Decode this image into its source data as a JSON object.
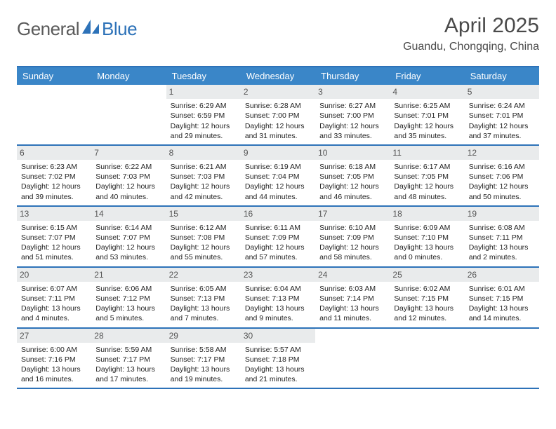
{
  "logo": {
    "text1": "General",
    "text2": "Blue"
  },
  "title": "April 2025",
  "location": "Guandu, Chongqing, China",
  "colors": {
    "accent": "#2d72b8",
    "header_bg": "#3a86c8",
    "daynum_bg": "#e9ebec",
    "text": "#222222",
    "muted": "#555555",
    "logo_gray": "#5a5a5a"
  },
  "weekdays": [
    "Sunday",
    "Monday",
    "Tuesday",
    "Wednesday",
    "Thursday",
    "Friday",
    "Saturday"
  ],
  "weeks": [
    [
      null,
      null,
      {
        "day": "1",
        "sunrise": "Sunrise: 6:29 AM",
        "sunset": "Sunset: 6:59 PM",
        "daylight1": "Daylight: 12 hours",
        "daylight2": "and 29 minutes."
      },
      {
        "day": "2",
        "sunrise": "Sunrise: 6:28 AM",
        "sunset": "Sunset: 7:00 PM",
        "daylight1": "Daylight: 12 hours",
        "daylight2": "and 31 minutes."
      },
      {
        "day": "3",
        "sunrise": "Sunrise: 6:27 AM",
        "sunset": "Sunset: 7:00 PM",
        "daylight1": "Daylight: 12 hours",
        "daylight2": "and 33 minutes."
      },
      {
        "day": "4",
        "sunrise": "Sunrise: 6:25 AM",
        "sunset": "Sunset: 7:01 PM",
        "daylight1": "Daylight: 12 hours",
        "daylight2": "and 35 minutes."
      },
      {
        "day": "5",
        "sunrise": "Sunrise: 6:24 AM",
        "sunset": "Sunset: 7:01 PM",
        "daylight1": "Daylight: 12 hours",
        "daylight2": "and 37 minutes."
      }
    ],
    [
      {
        "day": "6",
        "sunrise": "Sunrise: 6:23 AM",
        "sunset": "Sunset: 7:02 PM",
        "daylight1": "Daylight: 12 hours",
        "daylight2": "and 39 minutes."
      },
      {
        "day": "7",
        "sunrise": "Sunrise: 6:22 AM",
        "sunset": "Sunset: 7:03 PM",
        "daylight1": "Daylight: 12 hours",
        "daylight2": "and 40 minutes."
      },
      {
        "day": "8",
        "sunrise": "Sunrise: 6:21 AM",
        "sunset": "Sunset: 7:03 PM",
        "daylight1": "Daylight: 12 hours",
        "daylight2": "and 42 minutes."
      },
      {
        "day": "9",
        "sunrise": "Sunrise: 6:19 AM",
        "sunset": "Sunset: 7:04 PM",
        "daylight1": "Daylight: 12 hours",
        "daylight2": "and 44 minutes."
      },
      {
        "day": "10",
        "sunrise": "Sunrise: 6:18 AM",
        "sunset": "Sunset: 7:05 PM",
        "daylight1": "Daylight: 12 hours",
        "daylight2": "and 46 minutes."
      },
      {
        "day": "11",
        "sunrise": "Sunrise: 6:17 AM",
        "sunset": "Sunset: 7:05 PM",
        "daylight1": "Daylight: 12 hours",
        "daylight2": "and 48 minutes."
      },
      {
        "day": "12",
        "sunrise": "Sunrise: 6:16 AM",
        "sunset": "Sunset: 7:06 PM",
        "daylight1": "Daylight: 12 hours",
        "daylight2": "and 50 minutes."
      }
    ],
    [
      {
        "day": "13",
        "sunrise": "Sunrise: 6:15 AM",
        "sunset": "Sunset: 7:07 PM",
        "daylight1": "Daylight: 12 hours",
        "daylight2": "and 51 minutes."
      },
      {
        "day": "14",
        "sunrise": "Sunrise: 6:14 AM",
        "sunset": "Sunset: 7:07 PM",
        "daylight1": "Daylight: 12 hours",
        "daylight2": "and 53 minutes."
      },
      {
        "day": "15",
        "sunrise": "Sunrise: 6:12 AM",
        "sunset": "Sunset: 7:08 PM",
        "daylight1": "Daylight: 12 hours",
        "daylight2": "and 55 minutes."
      },
      {
        "day": "16",
        "sunrise": "Sunrise: 6:11 AM",
        "sunset": "Sunset: 7:09 PM",
        "daylight1": "Daylight: 12 hours",
        "daylight2": "and 57 minutes."
      },
      {
        "day": "17",
        "sunrise": "Sunrise: 6:10 AM",
        "sunset": "Sunset: 7:09 PM",
        "daylight1": "Daylight: 12 hours",
        "daylight2": "and 58 minutes."
      },
      {
        "day": "18",
        "sunrise": "Sunrise: 6:09 AM",
        "sunset": "Sunset: 7:10 PM",
        "daylight1": "Daylight: 13 hours",
        "daylight2": "and 0 minutes."
      },
      {
        "day": "19",
        "sunrise": "Sunrise: 6:08 AM",
        "sunset": "Sunset: 7:11 PM",
        "daylight1": "Daylight: 13 hours",
        "daylight2": "and 2 minutes."
      }
    ],
    [
      {
        "day": "20",
        "sunrise": "Sunrise: 6:07 AM",
        "sunset": "Sunset: 7:11 PM",
        "daylight1": "Daylight: 13 hours",
        "daylight2": "and 4 minutes."
      },
      {
        "day": "21",
        "sunrise": "Sunrise: 6:06 AM",
        "sunset": "Sunset: 7:12 PM",
        "daylight1": "Daylight: 13 hours",
        "daylight2": "and 5 minutes."
      },
      {
        "day": "22",
        "sunrise": "Sunrise: 6:05 AM",
        "sunset": "Sunset: 7:13 PM",
        "daylight1": "Daylight: 13 hours",
        "daylight2": "and 7 minutes."
      },
      {
        "day": "23",
        "sunrise": "Sunrise: 6:04 AM",
        "sunset": "Sunset: 7:13 PM",
        "daylight1": "Daylight: 13 hours",
        "daylight2": "and 9 minutes."
      },
      {
        "day": "24",
        "sunrise": "Sunrise: 6:03 AM",
        "sunset": "Sunset: 7:14 PM",
        "daylight1": "Daylight: 13 hours",
        "daylight2": "and 11 minutes."
      },
      {
        "day": "25",
        "sunrise": "Sunrise: 6:02 AM",
        "sunset": "Sunset: 7:15 PM",
        "daylight1": "Daylight: 13 hours",
        "daylight2": "and 12 minutes."
      },
      {
        "day": "26",
        "sunrise": "Sunrise: 6:01 AM",
        "sunset": "Sunset: 7:15 PM",
        "daylight1": "Daylight: 13 hours",
        "daylight2": "and 14 minutes."
      }
    ],
    [
      {
        "day": "27",
        "sunrise": "Sunrise: 6:00 AM",
        "sunset": "Sunset: 7:16 PM",
        "daylight1": "Daylight: 13 hours",
        "daylight2": "and 16 minutes."
      },
      {
        "day": "28",
        "sunrise": "Sunrise: 5:59 AM",
        "sunset": "Sunset: 7:17 PM",
        "daylight1": "Daylight: 13 hours",
        "daylight2": "and 17 minutes."
      },
      {
        "day": "29",
        "sunrise": "Sunrise: 5:58 AM",
        "sunset": "Sunset: 7:17 PM",
        "daylight1": "Daylight: 13 hours",
        "daylight2": "and 19 minutes."
      },
      {
        "day": "30",
        "sunrise": "Sunrise: 5:57 AM",
        "sunset": "Sunset: 7:18 PM",
        "daylight1": "Daylight: 13 hours",
        "daylight2": "and 21 minutes."
      },
      null,
      null,
      null
    ]
  ]
}
